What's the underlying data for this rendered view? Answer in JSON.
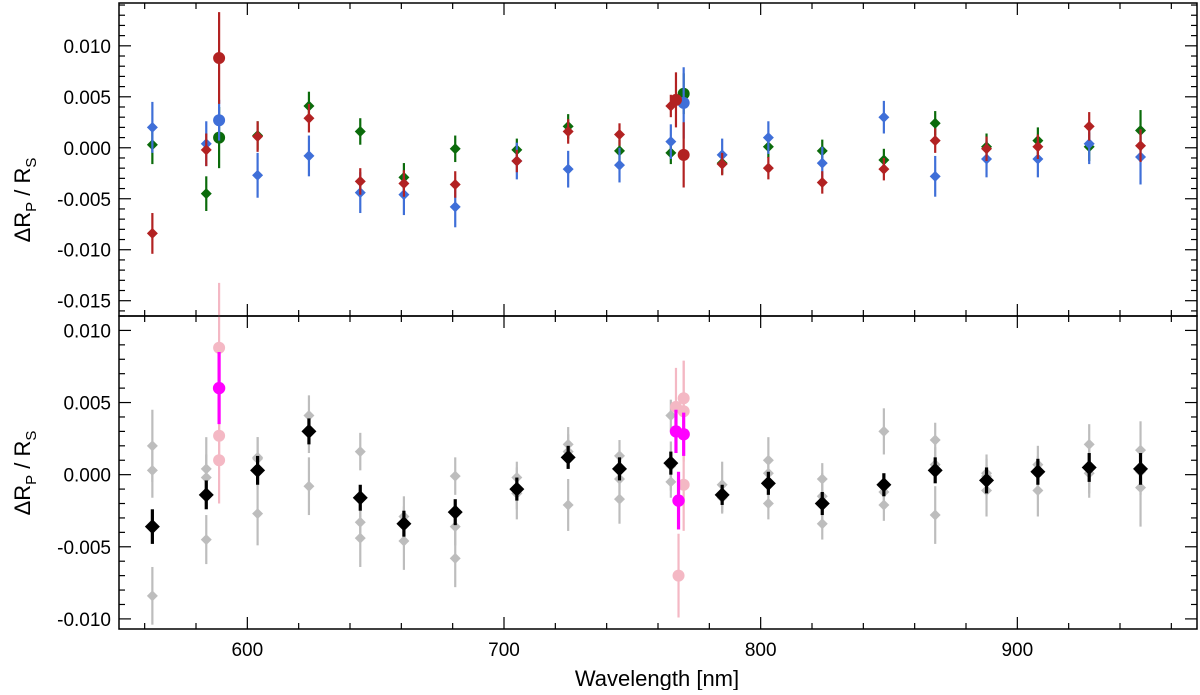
{
  "chart_data": [
    {
      "type": "scatter",
      "panel": "top",
      "ylabel_main": "ΔR",
      "ylabel_sub1": "P",
      "ylabel_slash": " / R",
      "ylabel_sub2": "S",
      "xlim": [
        550,
        970
      ],
      "ylim": [
        -0.0165,
        0.0142
      ],
      "yticks": [
        0.01,
        0.005,
        0.0,
        -0.005,
        -0.01,
        -0.015
      ],
      "ytick_labels": [
        "0.010",
        "0.005",
        "0.000",
        "-0.005",
        "-0.010",
        "-0.015"
      ],
      "series": [
        {
          "name": "green diamonds",
          "color": "#0b6b0b",
          "marker": "diamond",
          "x": [
            563,
            584,
            604,
            624,
            644,
            661,
            681,
            705,
            725,
            745,
            765,
            785,
            803,
            824,
            848,
            868,
            888,
            908,
            928,
            948
          ],
          "y": [
            0.0003,
            -0.0045,
            0.0012,
            0.0041,
            0.0016,
            -0.0029,
            -0.0001,
            -0.0002,
            0.0021,
            -0.0003,
            -0.0005,
            -0.0015,
            0.0001,
            -0.0003,
            -0.0012,
            0.0024,
            0.0001,
            0.0007,
            0.0001,
            0.0017
          ],
          "err": [
            0.0019,
            0.0017,
            0.0014,
            0.0014,
            0.0013,
            0.0014,
            0.0013,
            0.0011,
            0.0012,
            0.0011,
            0.0011,
            0.0011,
            0.0011,
            0.0011,
            0.0011,
            0.0012,
            0.0013,
            0.0013,
            0.0014,
            0.002
          ]
        },
        {
          "name": "blue diamonds",
          "color": "#3f6fd8",
          "marker": "diamond",
          "x": [
            563,
            584,
            604,
            624,
            644,
            661,
            681,
            705,
            725,
            745,
            765,
            785,
            803,
            824,
            848,
            868,
            888,
            908,
            928,
            948
          ],
          "y": [
            0.002,
            0.0004,
            -0.0027,
            -0.0008,
            -0.0044,
            -0.0046,
            -0.0058,
            -0.0013,
            -0.0021,
            -0.0017,
            0.0006,
            -0.0007,
            0.001,
            -0.0015,
            0.003,
            -0.0028,
            -0.0011,
            -0.0011,
            0.0004,
            -0.0009
          ],
          "err": [
            0.0025,
            0.0022,
            0.0022,
            0.002,
            0.002,
            0.002,
            0.002,
            0.0018,
            0.0018,
            0.0017,
            0.0017,
            0.0016,
            0.0016,
            0.0016,
            0.0016,
            0.002,
            0.0018,
            0.0018,
            0.002,
            0.0027
          ]
        },
        {
          "name": "red diamonds",
          "color": "#b22222",
          "marker": "diamond",
          "x": [
            563,
            584,
            604,
            624,
            644,
            661,
            681,
            705,
            725,
            745,
            765,
            785,
            803,
            824,
            848,
            868,
            888,
            908,
            928,
            948
          ],
          "y": [
            -0.0084,
            -0.0002,
            0.0011,
            0.0029,
            -0.0033,
            -0.0035,
            -0.0036,
            -0.0013,
            0.0016,
            0.0013,
            0.0041,
            -0.0016,
            -0.002,
            -0.0034,
            -0.0021,
            0.0007,
            -0.0001,
            0.0001,
            0.0021,
            0.0002
          ],
          "err": [
            0.002,
            0.0016,
            0.0015,
            0.0014,
            0.0013,
            0.0013,
            0.0013,
            0.0011,
            0.0012,
            0.0011,
            0.0011,
            0.0011,
            0.0011,
            0.0011,
            0.0011,
            0.0012,
            0.0012,
            0.0012,
            0.0014,
            0.0016
          ]
        },
        {
          "name": "green circles",
          "color": "#0b6b0b",
          "marker": "circle",
          "x": [
            589,
            770
          ],
          "y": [
            0.001,
            0.0053
          ],
          "err": [
            0.003,
            0.002
          ]
        },
        {
          "name": "blue circles",
          "color": "#3f6fd8",
          "marker": "circle",
          "x": [
            589,
            770
          ],
          "y": [
            0.0027,
            0.0044
          ],
          "err": [
            0.002,
            0.0035
          ]
        },
        {
          "name": "red circles",
          "color": "#b22222",
          "marker": "circle",
          "x": [
            589,
            767,
            770
          ],
          "y": [
            0.0088,
            0.0047,
            -0.0007
          ],
          "err": [
            0.0045,
            0.0027,
            0.0032
          ]
        }
      ]
    },
    {
      "type": "scatter",
      "panel": "bottom",
      "ylabel_main": "ΔR",
      "ylabel_sub1": "P",
      "ylabel_slash": " / R",
      "ylabel_sub2": "S",
      "xlabel": "Wavelength [nm]",
      "xlim": [
        550,
        970
      ],
      "ylim": [
        -0.0107,
        0.011
      ],
      "xticks": [
        600,
        700,
        800,
        900
      ],
      "xtick_labels": [
        "600",
        "700",
        "800",
        "900"
      ],
      "yticks": [
        0.01,
        0.005,
        0.0,
        -0.005,
        -0.01
      ],
      "ytick_labels": [
        "0.010",
        "0.005",
        "0.000",
        "-0.005",
        "-0.010"
      ],
      "series": [
        {
          "name": "individual diamonds (grey)",
          "color": "#bdbdbd",
          "marker": "diamond",
          "x": [
            563,
            584,
            604,
            624,
            644,
            661,
            681,
            705,
            725,
            745,
            765,
            785,
            803,
            824,
            848,
            868,
            888,
            908,
            928,
            948,
            563,
            584,
            604,
            624,
            644,
            661,
            681,
            705,
            725,
            745,
            765,
            785,
            803,
            824,
            848,
            868,
            888,
            908,
            928,
            948,
            563,
            584,
            604,
            624,
            644,
            661,
            681,
            705,
            725,
            745,
            765,
            785,
            803,
            824,
            848,
            868,
            888,
            908,
            928,
            948
          ],
          "y": [
            0.0003,
            -0.0045,
            0.0012,
            0.0041,
            0.0016,
            -0.0029,
            -0.0001,
            -0.0002,
            0.0021,
            -0.0003,
            -0.0005,
            -0.0015,
            0.0001,
            -0.0003,
            -0.0012,
            0.0024,
            0.0001,
            0.0007,
            0.0001,
            0.0017,
            0.002,
            0.0004,
            -0.0027,
            -0.0008,
            -0.0044,
            -0.0046,
            -0.0058,
            -0.0013,
            -0.0021,
            -0.0017,
            0.0006,
            -0.0007,
            0.001,
            -0.0015,
            0.003,
            -0.0028,
            -0.0011,
            -0.0011,
            0.0004,
            -0.0009,
            -0.0084,
            -0.0002,
            0.0011,
            0.0029,
            -0.0033,
            -0.0035,
            -0.0036,
            -0.0013,
            0.0016,
            0.0013,
            0.0041,
            -0.0016,
            -0.002,
            -0.0034,
            -0.0021,
            0.0007,
            -0.0001,
            0.0001,
            0.0021,
            0.0002
          ],
          "err": [
            0.0019,
            0.0017,
            0.0014,
            0.0014,
            0.0013,
            0.0014,
            0.0013,
            0.0011,
            0.0012,
            0.0011,
            0.0011,
            0.0011,
            0.0011,
            0.0011,
            0.0011,
            0.0012,
            0.0013,
            0.0013,
            0.0014,
            0.002,
            0.0025,
            0.0022,
            0.0022,
            0.002,
            0.002,
            0.002,
            0.002,
            0.0018,
            0.0018,
            0.0017,
            0.0017,
            0.0016,
            0.0016,
            0.0016,
            0.0016,
            0.002,
            0.0018,
            0.0018,
            0.002,
            0.0027,
            0.002,
            0.0016,
            0.0015,
            0.0014,
            0.0013,
            0.0013,
            0.0013,
            0.0011,
            0.0012,
            0.0011,
            0.0011,
            0.0011,
            0.0011,
            0.0011,
            0.0011,
            0.0012,
            0.0012,
            0.0012,
            0.0014,
            0.0016
          ]
        },
        {
          "name": "individual circles (pink)",
          "color": "#f4b8c4",
          "marker": "circle",
          "x": [
            589,
            589,
            589,
            767,
            768,
            770,
            770,
            770
          ],
          "y": [
            0.0088,
            0.0027,
            0.001,
            0.0047,
            -0.007,
            0.0053,
            0.0044,
            -0.0007
          ],
          "err": [
            0.0045,
            0.002,
            0.003,
            0.0027,
            0.0029,
            0.0026,
            0.0035,
            0.0032
          ]
        },
        {
          "name": "weighted mean (black)",
          "color": "#000000",
          "marker": "diamond",
          "x": [
            563,
            584,
            604,
            624,
            644,
            661,
            681,
            705,
            725,
            745,
            765,
            785,
            803,
            824,
            848,
            868,
            888,
            908,
            928,
            948
          ],
          "y": [
            -0.0036,
            -0.0014,
            0.0003,
            0.003,
            -0.0016,
            -0.0034,
            -0.0026,
            -0.001,
            0.0012,
            0.0004,
            0.0008,
            -0.0014,
            -0.0006,
            -0.002,
            -0.0007,
            0.0003,
            -0.0004,
            0.0002,
            0.0005,
            0.0004
          ],
          "err": [
            0.0012,
            0.001,
            0.001,
            0.0009,
            0.0009,
            0.0009,
            0.0009,
            0.0008,
            0.0008,
            0.0008,
            0.0008,
            0.0007,
            0.0008,
            0.0008,
            0.0008,
            0.0009,
            0.0009,
            0.0009,
            0.001,
            0.0011
          ]
        },
        {
          "name": "mean circles (magenta)",
          "color": "#ff00ff",
          "marker": "circle",
          "x": [
            589,
            767,
            768,
            770
          ],
          "y": [
            0.006,
            0.003,
            -0.0018,
            0.0028
          ],
          "err": [
            0.0025,
            0.0015,
            0.002,
            0.0015
          ]
        }
      ]
    }
  ]
}
